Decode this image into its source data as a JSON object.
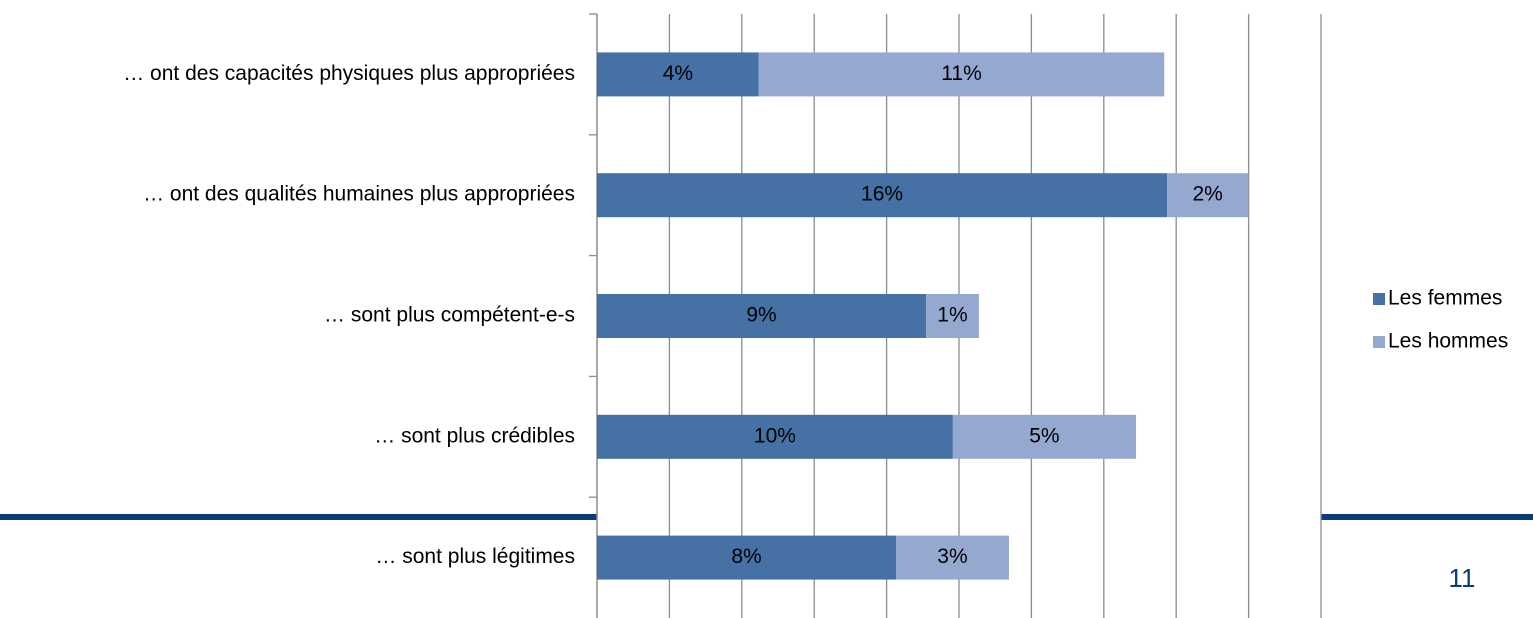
{
  "chart_data": {
    "type": "stacked-bar-horizontal",
    "categories": [
      "… ont des capacités physiques plus appropriées",
      "… ont des qualités humaines  plus appropriées",
      "… sont plus compétent-e-s",
      "… sont plus crédibles",
      "… sont plus légitimes"
    ],
    "series": [
      {
        "name": "Les femmes",
        "color": "#4571a5",
        "values": [
          4.47,
          15.75,
          9.09,
          9.83,
          8.26
        ],
        "value_labels": [
          "4%",
          "16%",
          "9%",
          "10%",
          "8%"
        ]
      },
      {
        "name": "Les hommes",
        "color": "#95a9d0",
        "values": [
          11.2,
          2.24,
          1.46,
          5.06,
          3.12
        ],
        "value_labels": [
          "11%",
          "2%",
          "1%",
          "5%",
          "3%"
        ]
      }
    ],
    "xlim": [
      0,
      20
    ],
    "xticks": [
      0,
      2,
      4,
      6,
      8,
      10,
      12,
      14,
      16,
      18,
      20
    ],
    "grid": true,
    "legend": "right"
  },
  "page_number": "11"
}
